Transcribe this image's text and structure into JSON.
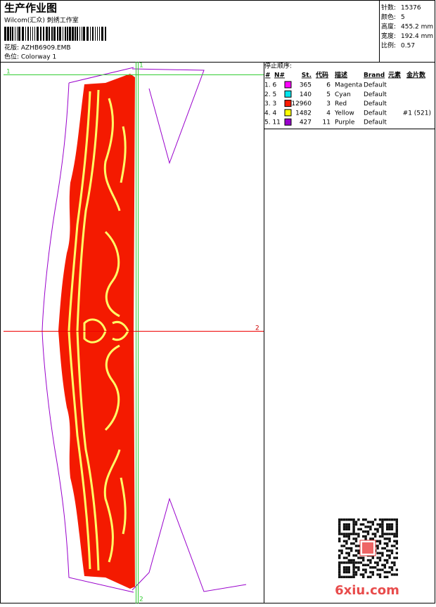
{
  "header": {
    "title": "生产作业图",
    "studio": "Wilcom(汇众) 刺绣工作室",
    "design": "花版: AZHB6909.EMB",
    "colorway": "色位: Colorway 1"
  },
  "stats": [
    {
      "label": "针数:",
      "value": "15376"
    },
    {
      "label": "颜色:",
      "value": "5"
    },
    {
      "label": "高度:",
      "value": "455.2 mm"
    },
    {
      "label": "宽度:",
      "value": "192.4 mm"
    },
    {
      "label": "比例:",
      "value": "0.57"
    }
  ],
  "table": {
    "title": "停止顺序:",
    "columns": [
      "#",
      "N#",
      "St.",
      "代码",
      "描述",
      "Brand",
      "元素",
      "金片数"
    ],
    "rows": [
      {
        "seq": "1. 6",
        "color": "#ff00ff",
        "stitches": "365",
        "code": "6",
        "desc": "Magenta",
        "brand": "Default"
      },
      {
        "seq": "2. 5",
        "color": "#00e5ee",
        "stitches": "140",
        "code": "5",
        "desc": "Cyan",
        "brand": "Default"
      },
      {
        "seq": "3. 3",
        "color": "#ff1a00",
        "stitches": "12960",
        "code": "3",
        "desc": "Red",
        "brand": "Default"
      },
      {
        "seq": "4. 4",
        "color": "#ffff00",
        "stitches": "1482",
        "code": "4",
        "desc": "Yellow",
        "brand": "Default",
        "sequins": "#1 (521)"
      },
      {
        "seq": "5. 11",
        "color": "#9900cc",
        "stitches": "427",
        "code": "11",
        "desc": "Purple",
        "brand": "Default"
      }
    ]
  },
  "markers": {
    "h1": "1",
    "h2": "2",
    "v1": "1",
    "v2": "2"
  },
  "watermark": "6xiu.com"
}
